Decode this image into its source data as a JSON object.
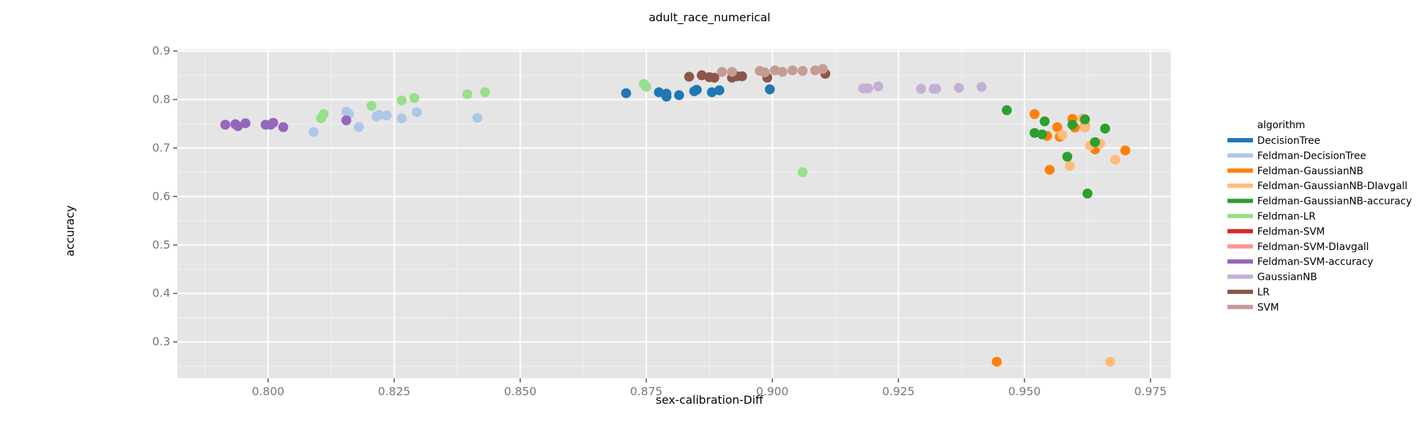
{
  "chart_data": {
    "type": "scatter",
    "title": "adult_race_numerical",
    "xlabel": "sex-calibration-Diff",
    "ylabel": "accuracy",
    "xlim": [
      0.782,
      0.979
    ],
    "ylim": [
      0.225,
      0.903
    ],
    "xticks": [
      0.8,
      0.825,
      0.85,
      0.875,
      0.9,
      0.925,
      0.95,
      0.975
    ],
    "xtick_labels": [
      "0.800",
      "0.825",
      "0.850",
      "0.875",
      "0.900",
      "0.925",
      "0.950",
      "0.975"
    ],
    "yticks": [
      0.3,
      0.4,
      0.5,
      0.6,
      0.7,
      0.8,
      0.9
    ],
    "ytick_labels": [
      "0.3",
      "0.4",
      "0.5",
      "0.6",
      "0.7",
      "0.8",
      "0.9"
    ],
    "grid": true,
    "legend_title": "algorithm",
    "legend_position": "right",
    "series": [
      {
        "name": "DecisionTree",
        "color": "#1f77b4",
        "points": [
          [
            0.871,
            0.813
          ],
          [
            0.8775,
            0.815
          ],
          [
            0.879,
            0.812
          ],
          [
            0.879,
            0.806
          ],
          [
            0.8815,
            0.809
          ],
          [
            0.8845,
            0.817
          ],
          [
            0.885,
            0.82
          ],
          [
            0.888,
            0.815
          ],
          [
            0.8895,
            0.819
          ],
          [
            0.8995,
            0.821
          ]
        ]
      },
      {
        "name": "Feldman-DecisionTree",
        "color": "#aec7e8",
        "points": [
          [
            0.809,
            0.733
          ],
          [
            0.8155,
            0.775
          ],
          [
            0.816,
            0.77
          ],
          [
            0.818,
            0.743
          ],
          [
            0.8215,
            0.765
          ],
          [
            0.822,
            0.768
          ],
          [
            0.8235,
            0.767
          ],
          [
            0.8265,
            0.761
          ],
          [
            0.8295,
            0.774
          ],
          [
            0.8415,
            0.762
          ]
        ]
      },
      {
        "name": "Feldman-GaussianNB",
        "color": "#ff7f0e",
        "points": [
          [
            0.9445,
            0.259
          ],
          [
            0.952,
            0.77
          ],
          [
            0.9545,
            0.725
          ],
          [
            0.955,
            0.655
          ],
          [
            0.9565,
            0.743
          ],
          [
            0.957,
            0.723
          ],
          [
            0.9595,
            0.76
          ],
          [
            0.96,
            0.742
          ],
          [
            0.962,
            0.745
          ],
          [
            0.9635,
            0.707
          ],
          [
            0.964,
            0.697
          ],
          [
            0.97,
            0.695
          ]
        ]
      },
      {
        "name": "Feldman-GaussianNB-DIavgall",
        "color": "#ffbb78",
        "points": [
          [
            0.9575,
            0.727
          ],
          [
            0.959,
            0.663
          ],
          [
            0.9615,
            0.761
          ],
          [
            0.962,
            0.742
          ],
          [
            0.963,
            0.705
          ],
          [
            0.965,
            0.709
          ],
          [
            0.967,
            0.259
          ],
          [
            0.968,
            0.676
          ]
        ]
      },
      {
        "name": "Feldman-GaussianNB-accuracy",
        "color": "#2ca02c",
        "points": [
          [
            0.9465,
            0.778
          ],
          [
            0.952,
            0.731
          ],
          [
            0.9535,
            0.728
          ],
          [
            0.954,
            0.755
          ],
          [
            0.9585,
            0.682
          ],
          [
            0.9595,
            0.748
          ],
          [
            0.962,
            0.759
          ],
          [
            0.9625,
            0.606
          ],
          [
            0.964,
            0.712
          ],
          [
            0.966,
            0.74
          ]
        ]
      },
      {
        "name": "Feldman-LR",
        "color": "#98df8a",
        "points": [
          [
            0.8105,
            0.761
          ],
          [
            0.811,
            0.77
          ],
          [
            0.8205,
            0.787
          ],
          [
            0.8265,
            0.798
          ],
          [
            0.829,
            0.803
          ],
          [
            0.8395,
            0.811
          ],
          [
            0.843,
            0.815
          ],
          [
            0.8745,
            0.832
          ],
          [
            0.875,
            0.826
          ],
          [
            0.906,
            0.65
          ]
        ]
      },
      {
        "name": "Feldman-SVM",
        "color": "#d62728",
        "points": []
      },
      {
        "name": "Feldman-SVM-DIavgall",
        "color": "#ff9896",
        "points": []
      },
      {
        "name": "Feldman-SVM-accuracy",
        "color": "#9467bd",
        "points": [
          [
            0.7915,
            0.748
          ],
          [
            0.7935,
            0.749
          ],
          [
            0.794,
            0.745
          ],
          [
            0.7955,
            0.751
          ],
          [
            0.7995,
            0.748
          ],
          [
            0.8005,
            0.748
          ],
          [
            0.801,
            0.752
          ],
          [
            0.803,
            0.743
          ],
          [
            0.8155,
            0.757
          ]
        ]
      },
      {
        "name": "GaussianNB",
        "color": "#c5b0d5",
        "points": [
          [
            0.918,
            0.823
          ],
          [
            0.919,
            0.823
          ],
          [
            0.921,
            0.827
          ],
          [
            0.9295,
            0.822
          ],
          [
            0.932,
            0.822
          ],
          [
            0.9325,
            0.822
          ],
          [
            0.937,
            0.824
          ],
          [
            0.9415,
            0.826
          ]
        ]
      },
      {
        "name": "LR",
        "color": "#8c564b",
        "points": [
          [
            0.8835,
            0.847
          ],
          [
            0.886,
            0.85
          ],
          [
            0.8875,
            0.846
          ],
          [
            0.8885,
            0.845
          ],
          [
            0.892,
            0.845
          ],
          [
            0.893,
            0.848
          ],
          [
            0.894,
            0.848
          ],
          [
            0.899,
            0.845
          ],
          [
            0.9105,
            0.853
          ]
        ]
      },
      {
        "name": "SVM",
        "color": "#c49c94",
        "points": [
          [
            0.89,
            0.857
          ],
          [
            0.892,
            0.857
          ],
          [
            0.8975,
            0.859
          ],
          [
            0.8985,
            0.856
          ],
          [
            0.9005,
            0.86
          ],
          [
            0.902,
            0.857
          ],
          [
            0.904,
            0.86
          ],
          [
            0.906,
            0.859
          ],
          [
            0.9085,
            0.86
          ],
          [
            0.91,
            0.863
          ]
        ]
      }
    ]
  }
}
